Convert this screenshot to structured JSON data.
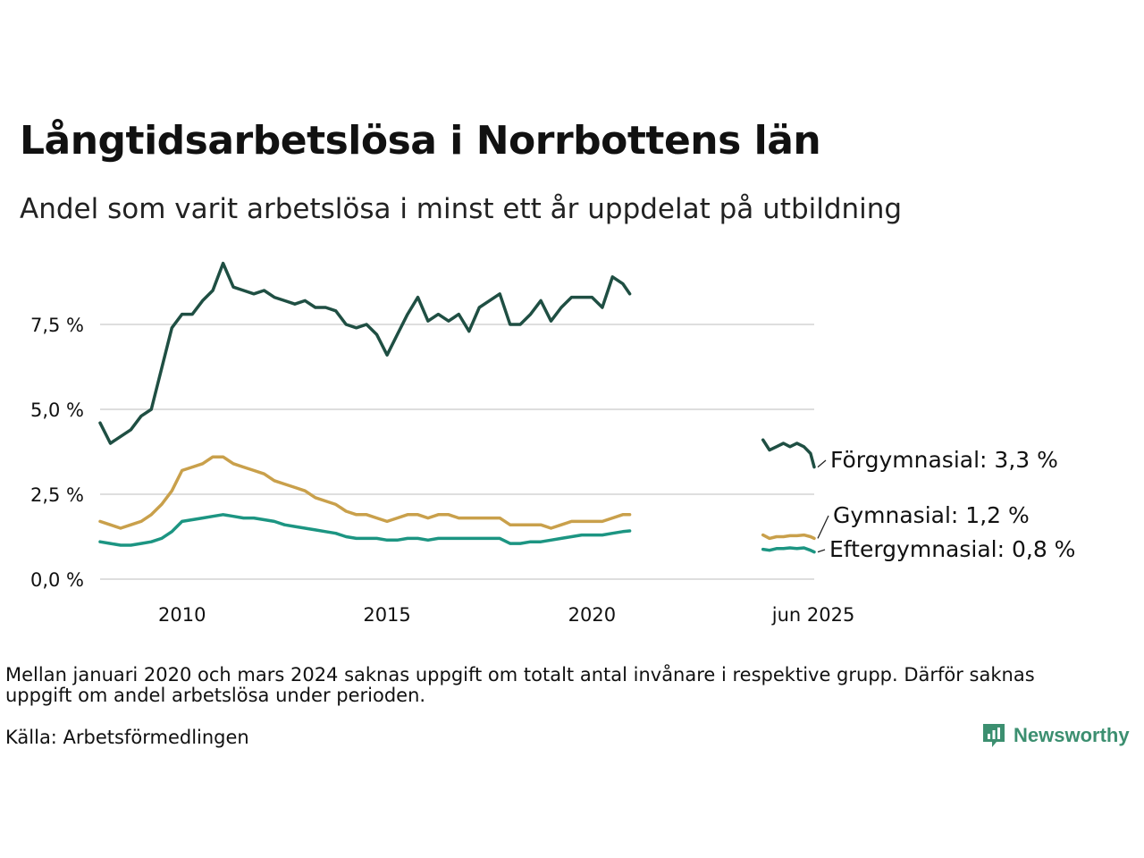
{
  "title": "Långtidsarbetslösa i Norrbottens län",
  "subtitle": "Andel som varit arbetslösa i minst ett år uppdelat på utbildning",
  "note": "Mellan januari 2020 och mars 2024 saknas uppgift om totalt antal invånare i respektive grupp. Därför saknas uppgift om andel arbetslösa under perioden.",
  "source": "Källa: Arbetsförmedlingen",
  "brand": "Newsworthy",
  "chart_data": {
    "type": "line",
    "title": "Långtidsarbetslösa i Norrbottens län",
    "subtitle": "Andel som varit arbetslösa i minst ett år uppdelat på utbildning",
    "xlabel": "",
    "ylabel": "",
    "ylim": [
      0,
      9.5
    ],
    "yticks": [
      0,
      2.5,
      5,
      7.5
    ],
    "ytick_labels": [
      "0,0 %",
      "2,5 %",
      "5,0 %",
      "7,5 %"
    ],
    "xticks": [
      2010,
      2015,
      2020,
      2025.4
    ],
    "xtick_labels": [
      "2010",
      "2015",
      "2020",
      "jun 2025"
    ],
    "grid": "horizontal",
    "legend": "direct labels at line ends",
    "series": [
      {
        "name": "Förgymnasial",
        "end_label": "Förgymnasial: 3,3 %",
        "color": "#1f4f43",
        "segments": [
          {
            "x": [
              2008.0,
              2008.25,
              2008.5,
              2008.75,
              2009.0,
              2009.25,
              2009.5,
              2009.75,
              2010.0,
              2010.25,
              2010.5,
              2010.75,
              2011.0,
              2011.25,
              2011.5,
              2011.75,
              2012.0,
              2012.25,
              2012.5,
              2012.75,
              2013.0,
              2013.25,
              2013.5,
              2013.75,
              2014.0,
              2014.25,
              2014.5,
              2014.75,
              2015.0,
              2015.25,
              2015.5,
              2015.75,
              2016.0,
              2016.25,
              2016.5,
              2016.75,
              2017.0,
              2017.25,
              2017.5,
              2017.75,
              2018.0,
              2018.25,
              2018.5,
              2018.75,
              2019.0,
              2019.25,
              2019.5,
              2019.75,
              2020.0,
              2020.25,
              2020.5,
              2020.75,
              2020.92
            ],
            "y": [
              4.6,
              4.0,
              4.2,
              4.4,
              4.8,
              5.0,
              6.2,
              7.4,
              7.8,
              7.8,
              8.2,
              8.5,
              9.3,
              8.6,
              8.5,
              8.4,
              8.5,
              8.3,
              8.2,
              8.1,
              8.2,
              8.0,
              8.0,
              7.9,
              7.5,
              7.4,
              7.5,
              7.2,
              6.6,
              7.2,
              7.8,
              8.3,
              7.6,
              7.8,
              7.6,
              7.8,
              7.3,
              8.0,
              8.2,
              8.4,
              7.5,
              7.5,
              7.8,
              8.2,
              7.6,
              8.0,
              8.3,
              8.3,
              8.3,
              8.0,
              8.9,
              8.7,
              8.4
            ]
          },
          {
            "x": [
              2024.17,
              2024.33,
              2024.5,
              2024.67,
              2024.83,
              2025.0,
              2025.17,
              2025.33,
              2025.42
            ],
            "y": [
              4.1,
              3.8,
              3.9,
              4.0,
              3.9,
              4.0,
              3.9,
              3.7,
              3.3
            ]
          }
        ]
      },
      {
        "name": "Gymnasial",
        "end_label": "Gymnasial: 1,2 %",
        "color": "#c9a04b",
        "segments": [
          {
            "x": [
              2008.0,
              2008.25,
              2008.5,
              2008.75,
              2009.0,
              2009.25,
              2009.5,
              2009.75,
              2010.0,
              2010.25,
              2010.5,
              2010.75,
              2011.0,
              2011.25,
              2011.5,
              2011.75,
              2012.0,
              2012.25,
              2012.5,
              2012.75,
              2013.0,
              2013.25,
              2013.5,
              2013.75,
              2014.0,
              2014.25,
              2014.5,
              2014.75,
              2015.0,
              2015.25,
              2015.5,
              2015.75,
              2016.0,
              2016.25,
              2016.5,
              2016.75,
              2017.0,
              2017.25,
              2017.5,
              2017.75,
              2018.0,
              2018.25,
              2018.5,
              2018.75,
              2019.0,
              2019.25,
              2019.5,
              2019.75,
              2020.0,
              2020.25,
              2020.5,
              2020.75,
              2020.92
            ],
            "y": [
              1.7,
              1.6,
              1.5,
              1.6,
              1.7,
              1.9,
              2.2,
              2.6,
              3.2,
              3.3,
              3.4,
              3.6,
              3.6,
              3.4,
              3.3,
              3.2,
              3.1,
              2.9,
              2.8,
              2.7,
              2.6,
              2.4,
              2.3,
              2.2,
              2.0,
              1.9,
              1.9,
              1.8,
              1.7,
              1.8,
              1.9,
              1.9,
              1.8,
              1.9,
              1.9,
              1.8,
              1.8,
              1.8,
              1.8,
              1.8,
              1.6,
              1.6,
              1.6,
              1.6,
              1.5,
              1.6,
              1.7,
              1.7,
              1.7,
              1.7,
              1.8,
              1.9,
              1.9
            ]
          },
          {
            "x": [
              2024.17,
              2024.33,
              2024.5,
              2024.67,
              2024.83,
              2025.0,
              2025.17,
              2025.33,
              2025.42
            ],
            "y": [
              1.3,
              1.2,
              1.25,
              1.25,
              1.28,
              1.28,
              1.3,
              1.25,
              1.2
            ]
          }
        ]
      },
      {
        "name": "Eftergymnasial",
        "end_label": "Eftergymnasial: 0,8 %",
        "color": "#1c9582",
        "segments": [
          {
            "x": [
              2008.0,
              2008.25,
              2008.5,
              2008.75,
              2009.0,
              2009.25,
              2009.5,
              2009.75,
              2010.0,
              2010.25,
              2010.5,
              2010.75,
              2011.0,
              2011.25,
              2011.5,
              2011.75,
              2012.0,
              2012.25,
              2012.5,
              2012.75,
              2013.0,
              2013.25,
              2013.5,
              2013.75,
              2014.0,
              2014.25,
              2014.5,
              2014.75,
              2015.0,
              2015.25,
              2015.5,
              2015.75,
              2016.0,
              2016.25,
              2016.5,
              2016.75,
              2017.0,
              2017.25,
              2017.5,
              2017.75,
              2018.0,
              2018.25,
              2018.5,
              2018.75,
              2019.0,
              2019.25,
              2019.5,
              2019.75,
              2020.0,
              2020.25,
              2020.5,
              2020.75,
              2020.92
            ],
            "y": [
              1.1,
              1.05,
              1.0,
              1.0,
              1.05,
              1.1,
              1.2,
              1.4,
              1.7,
              1.75,
              1.8,
              1.85,
              1.9,
              1.85,
              1.8,
              1.8,
              1.75,
              1.7,
              1.6,
              1.55,
              1.5,
              1.45,
              1.4,
              1.35,
              1.25,
              1.2,
              1.2,
              1.2,
              1.15,
              1.15,
              1.2,
              1.2,
              1.15,
              1.2,
              1.2,
              1.2,
              1.2,
              1.2,
              1.2,
              1.2,
              1.05,
              1.05,
              1.1,
              1.1,
              1.15,
              1.2,
              1.25,
              1.3,
              1.3,
              1.3,
              1.35,
              1.4,
              1.42
            ]
          },
          {
            "x": [
              2024.17,
              2024.33,
              2024.5,
              2024.67,
              2024.83,
              2025.0,
              2025.17,
              2025.33,
              2025.42
            ],
            "y": [
              0.88,
              0.85,
              0.9,
              0.9,
              0.92,
              0.9,
              0.92,
              0.85,
              0.8
            ]
          }
        ]
      }
    ]
  }
}
